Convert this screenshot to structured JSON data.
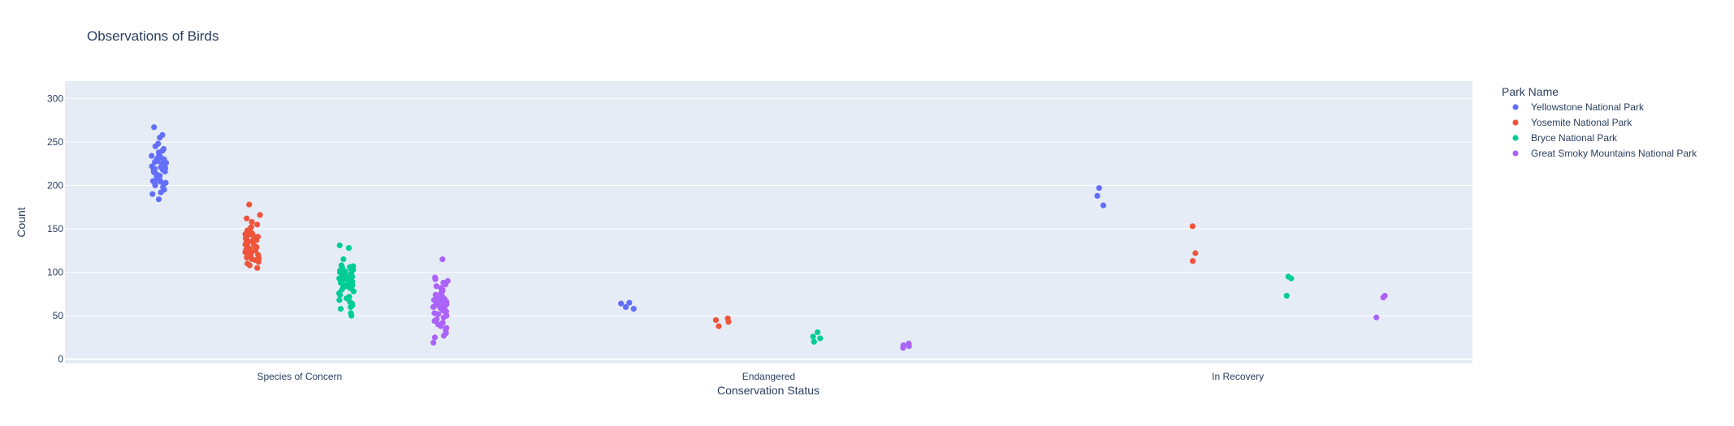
{
  "chart_data": {
    "type": "strip",
    "title": "Observations of Birds",
    "xlabel": "Conservation Status",
    "ylabel": "Count",
    "categories": [
      "Species of Concern",
      "Endangered",
      "In Recovery"
    ],
    "ylim": [
      -5,
      320
    ],
    "yticks": [
      0,
      50,
      100,
      150,
      200,
      250,
      300
    ],
    "grid": true,
    "legend": {
      "title": "Park Name",
      "position": "right"
    },
    "colors": {
      "plot_bg": "#e5ecf6",
      "grid": "#ffffff",
      "text": "#2a3f5f"
    },
    "series": [
      {
        "name": "Yellowstone National Park",
        "color": "#636efa",
        "values": [
          [
            267,
            258,
            255,
            248,
            245,
            242,
            240,
            238,
            236,
            235,
            234,
            233,
            232,
            231,
            230,
            229,
            228,
            227,
            226,
            225,
            224,
            223,
            222,
            221,
            220,
            219,
            218,
            217,
            216,
            215,
            213,
            211,
            210,
            208,
            206,
            205,
            204,
            203,
            202,
            200,
            198,
            195,
            192,
            190,
            184
          ],
          [
            65,
            64,
            60,
            58
          ],
          [
            197,
            188,
            177
          ]
        ]
      },
      {
        "name": "Yosemite National Park",
        "color": "#ef553b",
        "values": [
          [
            178,
            166,
            162,
            158,
            155,
            152,
            150,
            148,
            146,
            145,
            144,
            143,
            142,
            141,
            140,
            139,
            138,
            137,
            136,
            135,
            134,
            133,
            132,
            131,
            130,
            129,
            128,
            127,
            126,
            125,
            124,
            123,
            122,
            121,
            120,
            119,
            118,
            117,
            116,
            115,
            114,
            112,
            110,
            108,
            105
          ],
          [
            47,
            45,
            43,
            38
          ],
          [
            153,
            122,
            113
          ]
        ]
      },
      {
        "name": "Bryce National Park",
        "color": "#00cc96",
        "values": [
          [
            131,
            128,
            115,
            108,
            107,
            106,
            105,
            104,
            103,
            102,
            101,
            100,
            99,
            98,
            97,
            96,
            95,
            94,
            93,
            92,
            91,
            90,
            89,
            88,
            87,
            86,
            85,
            84,
            83,
            82,
            81,
            80,
            78,
            76,
            74,
            72,
            70,
            68,
            66,
            64,
            62,
            60,
            58,
            53,
            50
          ],
          [
            31,
            26,
            24,
            20
          ],
          [
            95,
            93,
            73
          ]
        ]
      },
      {
        "name": "Great Smoky Mountains National Park",
        "color": "#ab63fa",
        "values": [
          [
            115,
            94,
            92,
            90,
            88,
            86,
            84,
            82,
            80,
            78,
            76,
            74,
            72,
            70,
            69,
            68,
            67,
            66,
            65,
            64,
            63,
            62,
            61,
            60,
            59,
            58,
            57,
            56,
            55,
            54,
            53,
            52,
            50,
            48,
            46,
            44,
            42,
            40,
            38,
            36,
            33,
            30,
            27,
            25,
            19
          ],
          [
            18,
            16,
            15,
            13
          ],
          [
            73,
            71,
            48
          ]
        ]
      }
    ]
  }
}
